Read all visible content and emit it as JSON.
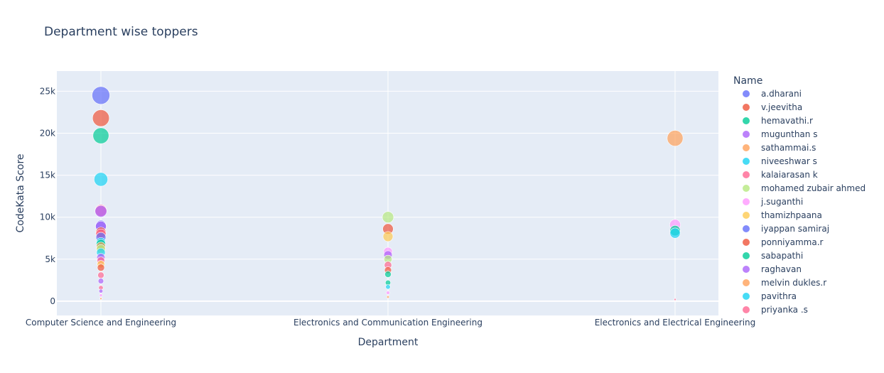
{
  "chart_data": {
    "type": "scatter",
    "title": "Department wise toppers",
    "xlabel": "Department",
    "ylabel": "CodeKata Score",
    "categories": [
      "Computer Science and Engineering",
      "Electronics and Communication Engineering",
      "Electronics and Electrical Engineering"
    ],
    "ylim": [
      -1700,
      27400
    ],
    "yticks": [
      0,
      5000,
      10000,
      15000,
      20000,
      25000
    ],
    "ytick_labels": [
      "0",
      "5k",
      "10k",
      "15k",
      "20k",
      "25k"
    ],
    "grid": true,
    "legend_title": "Name",
    "legend_placement": "right",
    "colors": [
      "#636efa",
      "#EF553B",
      "#00cc96",
      "#ab63fa",
      "#FFA15A",
      "#19d3f3",
      "#FF6692",
      "#B6E880",
      "#FF97FF",
      "#FECB52"
    ],
    "legend": [
      {
        "name": "a.dharani",
        "color": "#636efa"
      },
      {
        "name": "v.jeevitha",
        "color": "#EF553B"
      },
      {
        "name": "hemavathi.r",
        "color": "#00cc96"
      },
      {
        "name": "mugunthan s",
        "color": "#ab63fa"
      },
      {
        "name": "sathammai.s",
        "color": "#FFA15A"
      },
      {
        "name": "niveeshwar s",
        "color": "#19d3f3"
      },
      {
        "name": "kalaiarasan k",
        "color": "#FF6692"
      },
      {
        "name": "mohamed zubair ahmed",
        "color": "#B6E880"
      },
      {
        "name": "j.suganthi",
        "color": "#FF97FF"
      },
      {
        "name": "thamizhpaana",
        "color": "#FECB52"
      },
      {
        "name": "iyappan samiraj",
        "color": "#636efa"
      },
      {
        "name": "ponniyamma.r",
        "color": "#EF553B"
      },
      {
        "name": "sabapathi",
        "color": "#00cc96"
      },
      {
        "name": "raghavan",
        "color": "#ab63fa"
      },
      {
        "name": "melvin dukles.r",
        "color": "#FFA15A"
      },
      {
        "name": "pavithra",
        "color": "#19d3f3"
      },
      {
        "name": "priyanka .s",
        "color": "#FF6692"
      }
    ],
    "points": [
      {
        "department": 0,
        "y": 24500,
        "color": "#636efa"
      },
      {
        "department": 0,
        "y": 21800,
        "color": "#EF553B"
      },
      {
        "department": 0,
        "y": 19700,
        "color": "#00cc96"
      },
      {
        "department": 0,
        "y": 14500,
        "color": "#19d3f3"
      },
      {
        "department": 0,
        "y": 10800,
        "color": "#FF6692"
      },
      {
        "department": 0,
        "y": 10700,
        "color": "#ab63fa"
      },
      {
        "department": 0,
        "y": 9000,
        "color": "#636efa"
      },
      {
        "department": 0,
        "y": 8900,
        "color": "#ab63fa"
      },
      {
        "department": 0,
        "y": 8200,
        "color": "#EF553B"
      },
      {
        "department": 0,
        "y": 8000,
        "color": "#FF6692"
      },
      {
        "department": 0,
        "y": 7600,
        "color": "#636efa"
      },
      {
        "department": 0,
        "y": 7000,
        "color": "#19d3f3"
      },
      {
        "department": 0,
        "y": 6800,
        "color": "#00cc96"
      },
      {
        "department": 0,
        "y": 6500,
        "color": "#FFA15A"
      },
      {
        "department": 0,
        "y": 6200,
        "color": "#B6E880"
      },
      {
        "department": 0,
        "y": 5800,
        "color": "#19d3f3"
      },
      {
        "department": 0,
        "y": 5200,
        "color": "#ab63fa"
      },
      {
        "department": 0,
        "y": 4800,
        "color": "#FF6692"
      },
      {
        "department": 0,
        "y": 4400,
        "color": "#FECB52"
      },
      {
        "department": 0,
        "y": 4000,
        "color": "#EF553B"
      },
      {
        "department": 0,
        "y": 3100,
        "color": "#FF6692"
      },
      {
        "department": 0,
        "y": 2400,
        "color": "#ab63fa"
      },
      {
        "department": 0,
        "y": 1600,
        "color": "#FF6692"
      },
      {
        "department": 0,
        "y": 1200,
        "color": "#ab63fa"
      },
      {
        "department": 0,
        "y": 700,
        "color": "#FF97FF"
      },
      {
        "department": 0,
        "y": 300,
        "color": "#FFA15A"
      },
      {
        "department": 1,
        "y": 10000,
        "color": "#B6E880"
      },
      {
        "department": 1,
        "y": 8600,
        "color": "#EF553B"
      },
      {
        "department": 1,
        "y": 7700,
        "color": "#FECB52"
      },
      {
        "department": 1,
        "y": 5900,
        "color": "#FF97FF"
      },
      {
        "department": 1,
        "y": 5500,
        "color": "#ab63fa"
      },
      {
        "department": 1,
        "y": 5000,
        "color": "#B6E880"
      },
      {
        "department": 1,
        "y": 4300,
        "color": "#FF6692"
      },
      {
        "department": 1,
        "y": 3700,
        "color": "#EF553B"
      },
      {
        "department": 1,
        "y": 3200,
        "color": "#00cc96"
      },
      {
        "department": 1,
        "y": 2200,
        "color": "#00cc96"
      },
      {
        "department": 1,
        "y": 1700,
        "color": "#19d3f3"
      },
      {
        "department": 1,
        "y": 1000,
        "color": "#FF97FF"
      },
      {
        "department": 1,
        "y": 500,
        "color": "#FFA15A"
      },
      {
        "department": 2,
        "y": 19400,
        "color": "#FFA15A"
      },
      {
        "department": 2,
        "y": 9100,
        "color": "#FF97FF"
      },
      {
        "department": 2,
        "y": 8400,
        "color": "#00cc96"
      },
      {
        "department": 2,
        "y": 8100,
        "color": "#19d3f3"
      },
      {
        "department": 2,
        "y": 200,
        "color": "#FF6692"
      }
    ]
  }
}
